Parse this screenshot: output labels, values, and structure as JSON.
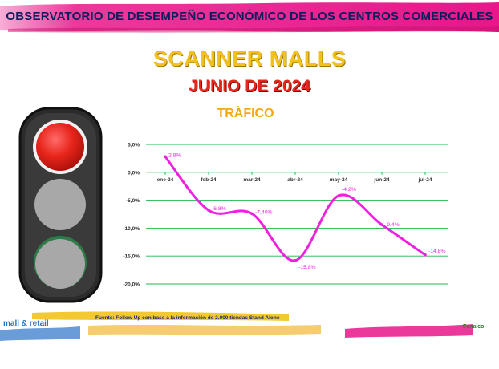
{
  "header": {
    "banner_title": "OBSERVATORIO DE DESEMPEÑO ECONÓMICO  DE LOS CENTROS COMERCIALES",
    "main_title": "SCANNER MALLS",
    "sub_title": "JUNIO DE 2024"
  },
  "colors": {
    "banner_pink": "#e8168a",
    "title_yellow": "#f2c21a",
    "subtitle_red": "#e8261c",
    "chart_title_orange": "#f2a80f",
    "line_magenta": "#f020e0",
    "grid_green": "#1fb84a",
    "light_red": "#e8261c",
    "light_off": "#a8a8a8"
  },
  "traffic_light": {
    "active": "red"
  },
  "chart_data": {
    "type": "line",
    "title": "TRÀFICO",
    "categories": [
      "ene-24",
      "feb-24",
      "mar-24",
      "abr-24",
      "may-24",
      "jun-24",
      "jul-24"
    ],
    "series": [
      {
        "values": [
          2.8,
          -6.8,
          -7.4,
          -15.8,
          -4.2,
          -9.4,
          -14.8
        ],
        "labels": [
          "2,8%",
          "-6,8%",
          "-7,40%",
          "-15,8%",
          "-4,2%",
          "-9,4%",
          "-14,8%"
        ]
      }
    ],
    "y_ticks": [
      5,
      0,
      -5,
      -10,
      -15,
      -20
    ],
    "y_tick_labels": [
      "5,0%",
      "0,0%",
      "-5,0%",
      "-10,0%",
      "-15,0%",
      "-20,0%"
    ],
    "ylim": [
      -20,
      5
    ],
    "grid": true,
    "smooth": true
  },
  "footer": {
    "source": "Fuente:  Follow Up con base a la información de 2.000 tiendas Stand Alone",
    "logo_left": "mall & retail",
    "logo_right": "Fenalco"
  }
}
